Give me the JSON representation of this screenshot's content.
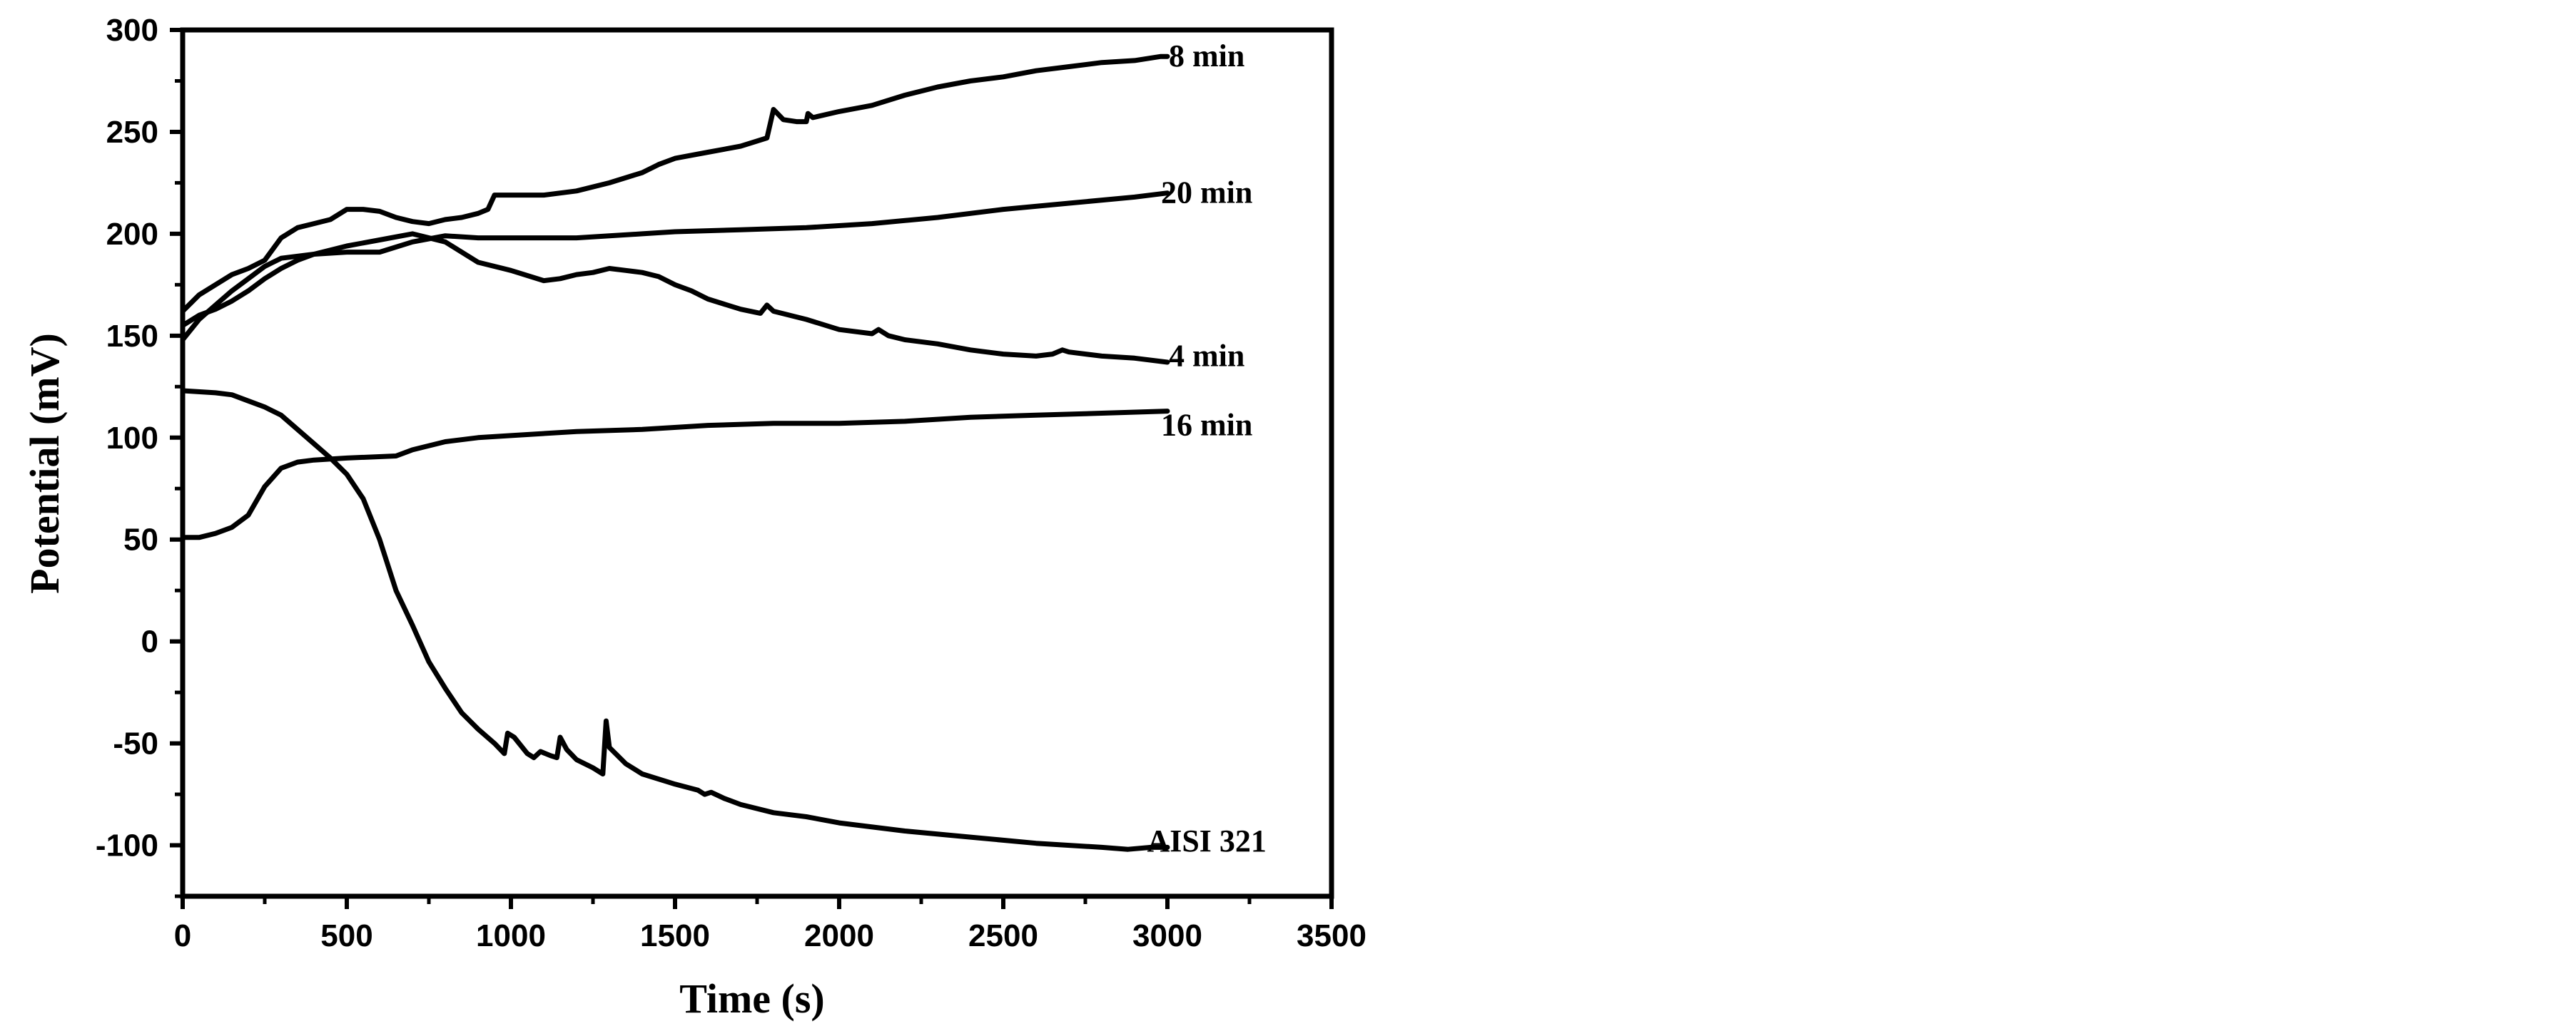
{
  "chart_data": {
    "type": "line",
    "xlabel": "Time (s)",
    "ylabel": "Potential (mV)",
    "xlim": [
      0,
      3500
    ],
    "ylim": [
      -125,
      300
    ],
    "x_ticks": [
      0,
      500,
      1000,
      1500,
      2000,
      2500,
      3000,
      3500
    ],
    "y_ticks": [
      -100,
      -50,
      0,
      50,
      100,
      150,
      200,
      250,
      300
    ],
    "grid": false,
    "line_color": "#000000",
    "series": [
      {
        "name": "8 min",
        "points": [
          [
            0,
            162
          ],
          [
            50,
            170
          ],
          [
            100,
            175
          ],
          [
            150,
            180
          ],
          [
            200,
            183
          ],
          [
            250,
            187
          ],
          [
            300,
            198
          ],
          [
            350,
            203
          ],
          [
            400,
            205
          ],
          [
            450,
            207
          ],
          [
            500,
            212
          ],
          [
            550,
            212
          ],
          [
            600,
            211
          ],
          [
            650,
            208
          ],
          [
            700,
            206
          ],
          [
            750,
            205
          ],
          [
            800,
            207
          ],
          [
            850,
            208
          ],
          [
            900,
            210
          ],
          [
            930,
            212
          ],
          [
            950,
            219
          ],
          [
            1000,
            219
          ],
          [
            1100,
            219
          ],
          [
            1200,
            221
          ],
          [
            1300,
            225
          ],
          [
            1400,
            230
          ],
          [
            1450,
            234
          ],
          [
            1500,
            237
          ],
          [
            1600,
            240
          ],
          [
            1700,
            243
          ],
          [
            1780,
            247
          ],
          [
            1800,
            261
          ],
          [
            1830,
            256
          ],
          [
            1870,
            255
          ],
          [
            1900,
            255
          ],
          [
            1905,
            259
          ],
          [
            1920,
            257
          ],
          [
            2000,
            260
          ],
          [
            2100,
            263
          ],
          [
            2200,
            268
          ],
          [
            2300,
            272
          ],
          [
            2400,
            275
          ],
          [
            2500,
            277
          ],
          [
            2600,
            280
          ],
          [
            2700,
            282
          ],
          [
            2800,
            284
          ],
          [
            2900,
            285
          ],
          [
            2980,
            287
          ],
          [
            3000,
            287
          ]
        ]
      },
      {
        "name": "20 min",
        "points": [
          [
            0,
            155
          ],
          [
            50,
            160
          ],
          [
            100,
            163
          ],
          [
            150,
            167
          ],
          [
            200,
            172
          ],
          [
            250,
            178
          ],
          [
            300,
            183
          ],
          [
            350,
            187
          ],
          [
            400,
            190
          ],
          [
            500,
            191
          ],
          [
            600,
            191
          ],
          [
            700,
            196
          ],
          [
            800,
            199
          ],
          [
            900,
            198
          ],
          [
            1000,
            198
          ],
          [
            1100,
            198
          ],
          [
            1200,
            198
          ],
          [
            1300,
            199
          ],
          [
            1400,
            200
          ],
          [
            1500,
            201
          ],
          [
            1700,
            202
          ],
          [
            1900,
            203
          ],
          [
            2100,
            205
          ],
          [
            2300,
            208
          ],
          [
            2500,
            212
          ],
          [
            2700,
            215
          ],
          [
            2900,
            218
          ],
          [
            3000,
            220
          ]
        ]
      },
      {
        "name": "4 min",
        "points": [
          [
            0,
            148
          ],
          [
            50,
            158
          ],
          [
            100,
            165
          ],
          [
            150,
            172
          ],
          [
            200,
            178
          ],
          [
            250,
            184
          ],
          [
            300,
            188
          ],
          [
            400,
            190
          ],
          [
            500,
            194
          ],
          [
            600,
            197
          ],
          [
            700,
            200
          ],
          [
            800,
            196
          ],
          [
            900,
            186
          ],
          [
            1000,
            182
          ],
          [
            1100,
            177
          ],
          [
            1150,
            178
          ],
          [
            1200,
            180
          ],
          [
            1250,
            181
          ],
          [
            1300,
            183
          ],
          [
            1350,
            182
          ],
          [
            1400,
            181
          ],
          [
            1450,
            179
          ],
          [
            1500,
            175
          ],
          [
            1550,
            172
          ],
          [
            1600,
            168
          ],
          [
            1700,
            163
          ],
          [
            1760,
            161
          ],
          [
            1780,
            165
          ],
          [
            1800,
            162
          ],
          [
            1900,
            158
          ],
          [
            2000,
            153
          ],
          [
            2100,
            151
          ],
          [
            2120,
            153
          ],
          [
            2150,
            150
          ],
          [
            2200,
            148
          ],
          [
            2300,
            146
          ],
          [
            2400,
            143
          ],
          [
            2500,
            141
          ],
          [
            2600,
            140
          ],
          [
            2650,
            141
          ],
          [
            2680,
            143
          ],
          [
            2700,
            142
          ],
          [
            2800,
            140
          ],
          [
            2900,
            139
          ],
          [
            3000,
            137
          ]
        ]
      },
      {
        "name": "16 min",
        "points": [
          [
            0,
            51
          ],
          [
            50,
            51
          ],
          [
            100,
            53
          ],
          [
            150,
            56
          ],
          [
            200,
            62
          ],
          [
            250,
            76
          ],
          [
            300,
            85
          ],
          [
            350,
            88
          ],
          [
            400,
            89
          ],
          [
            500,
            90
          ],
          [
            650,
            91
          ],
          [
            700,
            94
          ],
          [
            800,
            98
          ],
          [
            900,
            100
          ],
          [
            1000,
            101
          ],
          [
            1200,
            103
          ],
          [
            1400,
            104
          ],
          [
            1600,
            106
          ],
          [
            1800,
            107
          ],
          [
            2000,
            107
          ],
          [
            2200,
            108
          ],
          [
            2400,
            110
          ],
          [
            2600,
            111
          ],
          [
            2800,
            112
          ],
          [
            3000,
            113
          ]
        ]
      },
      {
        "name": "AISI 321",
        "points": [
          [
            0,
            123
          ],
          [
            100,
            122
          ],
          [
            150,
            121
          ],
          [
            200,
            118
          ],
          [
            250,
            115
          ],
          [
            300,
            111
          ],
          [
            350,
            104
          ],
          [
            400,
            97
          ],
          [
            450,
            90
          ],
          [
            500,
            82
          ],
          [
            550,
            70
          ],
          [
            600,
            50
          ],
          [
            650,
            25
          ],
          [
            700,
            8
          ],
          [
            750,
            -10
          ],
          [
            800,
            -23
          ],
          [
            850,
            -35
          ],
          [
            900,
            -43
          ],
          [
            950,
            -50
          ],
          [
            980,
            -55
          ],
          [
            990,
            -45
          ],
          [
            1010,
            -47
          ],
          [
            1050,
            -55
          ],
          [
            1070,
            -57
          ],
          [
            1090,
            -54
          ],
          [
            1120,
            -56
          ],
          [
            1140,
            -57
          ],
          [
            1150,
            -47
          ],
          [
            1170,
            -53
          ],
          [
            1200,
            -58
          ],
          [
            1250,
            -62
          ],
          [
            1280,
            -65
          ],
          [
            1290,
            -39
          ],
          [
            1300,
            -52
          ],
          [
            1350,
            -60
          ],
          [
            1400,
            -65
          ],
          [
            1500,
            -70
          ],
          [
            1570,
            -73
          ],
          [
            1590,
            -75
          ],
          [
            1610,
            -74
          ],
          [
            1650,
            -77
          ],
          [
            1700,
            -80
          ],
          [
            1800,
            -84
          ],
          [
            1900,
            -86
          ],
          [
            2000,
            -89
          ],
          [
            2200,
            -93
          ],
          [
            2400,
            -96
          ],
          [
            2600,
            -99
          ],
          [
            2800,
            -101
          ],
          [
            2880,
            -102
          ],
          [
            2950,
            -101
          ],
          [
            3000,
            -101
          ]
        ]
      }
    ],
    "labels": [
      {
        "text": "8 min",
        "x": 3120,
        "y": 287
      },
      {
        "text": "20 min",
        "x": 3120,
        "y": 220
      },
      {
        "text": "4 min",
        "x": 3120,
        "y": 140
      },
      {
        "text": "16 min",
        "x": 3120,
        "y": 106
      },
      {
        "text": "AISI 321",
        "x": 3120,
        "y": -98
      }
    ]
  }
}
